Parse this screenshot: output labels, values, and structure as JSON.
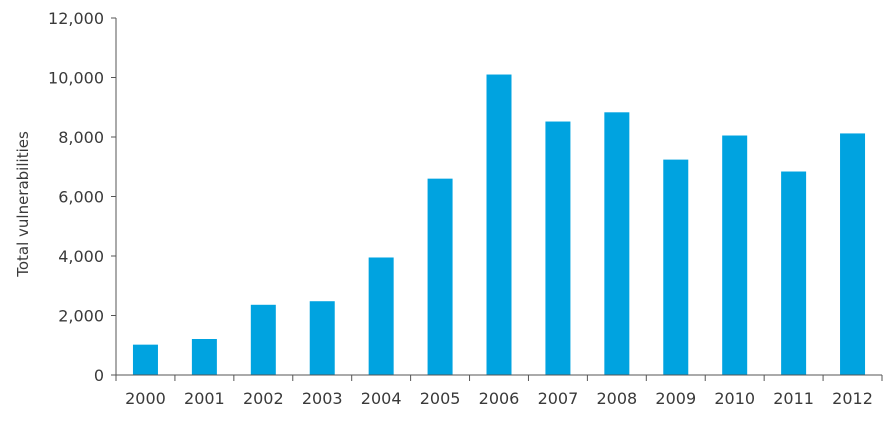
{
  "chart_data": {
    "type": "bar",
    "title": "",
    "xlabel": "",
    "ylabel": "Total vulnerabilities",
    "categories": [
      "2000",
      "2001",
      "2002",
      "2003",
      "2004",
      "2005",
      "2006",
      "2007",
      "2008",
      "2009",
      "2010",
      "2011",
      "2012"
    ],
    "series": [
      {
        "values": [
          1020,
          1210,
          2360,
          2480,
          3950,
          6600,
          10100,
          8520,
          8830,
          7240,
          8050,
          6840,
          8120
        ],
        "color": "#00a3e0"
      }
    ],
    "ylim": [
      0,
      12000
    ],
    "yticks": [
      0,
      2000,
      4000,
      6000,
      8000,
      10000,
      12000
    ],
    "ytick_labels": [
      "0",
      "2,000",
      "4,000",
      "6,000",
      "8,000",
      "10,000",
      "12,000"
    ],
    "grid": false,
    "legend": "none",
    "axis_color": "#555555"
  }
}
